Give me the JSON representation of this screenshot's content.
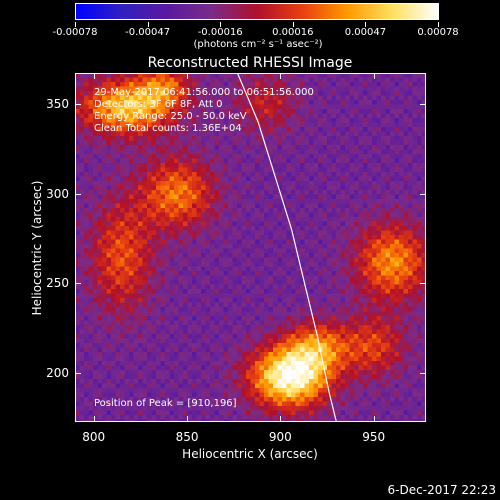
{
  "colorbar": {
    "tick_labels": [
      "-0.00078",
      "-0.00047",
      "-0.00016",
      "0.00016",
      "0.00047",
      "0.00078"
    ],
    "units": "(photons cm⁻² s⁻¹ asec⁻²)"
  },
  "info": {
    "time_range": "29-May-2017 06:41:56.000 to 06:51:56.000",
    "detectors": "Detectors: 3F 6F 8F, Att 0",
    "energy": "Energy Range: 25.0 - 50.0 keV",
    "algorithm": "Clean     Total counts: 1.36E+04",
    "peak": "Position of Peak = [910,196]"
  },
  "timestamp": "6-Dec-2017 22:23",
  "chart_data": {
    "type": "heatmap",
    "title": "Reconstructed RHESSI Image",
    "xlabel": "Heliocentric X (arcsec)",
    "ylabel": "Heliocentric Y (arcsec)",
    "xlim": [
      790,
      978
    ],
    "ylim": [
      173,
      367
    ],
    "xticks": [
      800,
      850,
      900,
      950
    ],
    "yticks": [
      200,
      250,
      300,
      350
    ],
    "value_range": [
      -0.00078,
      0.00078
    ],
    "colormap": [
      "#0000ff",
      "#3020c0",
      "#5a1aa0",
      "#7a2b8a",
      "#b0102a",
      "#e84010",
      "#ff9a00",
      "#ffe060",
      "#ffffff"
    ],
    "limb_points": [
      [
        877,
        367
      ],
      [
        888,
        340
      ],
      [
        897,
        310
      ],
      [
        906,
        280
      ],
      [
        913,
        250
      ],
      [
        920,
        220
      ],
      [
        926,
        190
      ],
      [
        930,
        173
      ]
    ],
    "peak": [
      910,
      196
    ],
    "sources": [
      {
        "x": 905,
        "y": 198,
        "amp": 1.0,
        "sx": 15,
        "sy": 12
      },
      {
        "x": 818,
        "y": 348,
        "amp": 0.75,
        "sx": 18,
        "sy": 11
      },
      {
        "x": 845,
        "y": 300,
        "amp": 0.55,
        "sx": 14,
        "sy": 14
      },
      {
        "x": 960,
        "y": 262,
        "amp": 0.6,
        "sx": 14,
        "sy": 15
      },
      {
        "x": 920,
        "y": 215,
        "amp": 0.5,
        "sx": 12,
        "sy": 10
      },
      {
        "x": 815,
        "y": 265,
        "amp": 0.45,
        "sx": 12,
        "sy": 22
      },
      {
        "x": 950,
        "y": 215,
        "amp": 0.4,
        "sx": 12,
        "sy": 12
      },
      {
        "x": 892,
        "y": 350,
        "amp": 0.3,
        "sx": 12,
        "sy": 12
      },
      {
        "x": 838,
        "y": 360,
        "amp": 0.4,
        "sx": 10,
        "sy": 8
      }
    ]
  }
}
